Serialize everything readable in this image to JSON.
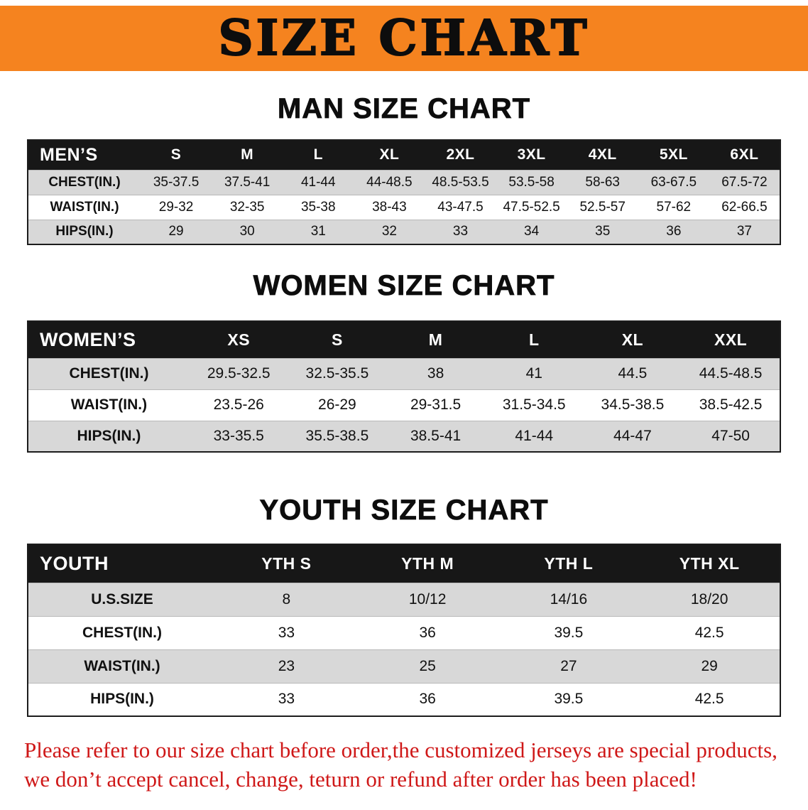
{
  "banner": {
    "title": "SIZE CHART",
    "bg_color": "#f5831f",
    "text_color": "#0d0d0d"
  },
  "sections": [
    {
      "heading": "MAN SIZE CHART",
      "table": {
        "corner_label": "MEN’S",
        "columns": [
          "S",
          "M",
          "L",
          "XL",
          "2XL",
          "3XL",
          "4XL",
          "5XL",
          "6XL"
        ],
        "rows": [
          {
            "label": "CHEST(IN.)",
            "values": [
              "35-37.5",
              "37.5-41",
              "41-44",
              "44-48.5",
              "48.5-53.5",
              "53.5-58",
              "58-63",
              "63-67.5",
              "67.5-72"
            ]
          },
          {
            "label": "WAIST(IN.)",
            "values": [
              "29-32",
              "32-35",
              "35-38",
              "38-43",
              "43-47.5",
              "47.5-52.5",
              "52.5-57",
              "57-62",
              "62-66.5"
            ]
          },
          {
            "label": "HIPS(IN.)",
            "values": [
              "29",
              "30",
              "31",
              "32",
              "33",
              "34",
              "35",
              "36",
              "37"
            ]
          }
        ]
      }
    },
    {
      "heading": "WOMEN SIZE CHART",
      "table": {
        "corner_label": "WOMEN’S",
        "columns": [
          "XS",
          "S",
          "M",
          "L",
          "XL",
          "XXL"
        ],
        "rows": [
          {
            "label": "CHEST(IN.)",
            "values": [
              "29.5-32.5",
              "32.5-35.5",
              "38",
              "41",
              "44.5",
              "44.5-48.5"
            ]
          },
          {
            "label": "WAIST(IN.)",
            "values": [
              "23.5-26",
              "26-29",
              "29-31.5",
              "31.5-34.5",
              "34.5-38.5",
              "38.5-42.5"
            ]
          },
          {
            "label": "HIPS(IN.)",
            "values": [
              "33-35.5",
              "35.5-38.5",
              "38.5-41",
              "41-44",
              "44-47",
              "47-50"
            ]
          }
        ]
      }
    },
    {
      "heading": "YOUTH SIZE CHART",
      "table": {
        "corner_label": "YOUTH",
        "columns": [
          "YTH S",
          "YTH M",
          "YTH L",
          "YTH XL"
        ],
        "rows": [
          {
            "label": "U.S.SIZE",
            "values": [
              "8",
              "10/12",
              "14/16",
              "18/20"
            ]
          },
          {
            "label": "CHEST(IN.)",
            "values": [
              "33",
              "36",
              "39.5",
              "42.5"
            ]
          },
          {
            "label": "WAIST(IN.)",
            "values": [
              "23",
              "25",
              "27",
              "29"
            ]
          },
          {
            "label": "HIPS(IN.)",
            "values": [
              "33",
              "36",
              "39.5",
              "42.5"
            ]
          }
        ]
      }
    }
  ],
  "footer": {
    "lines": [
      "Please refer to our size chart before order,the customized jerseys are special products,",
      "we don’t accept cancel, change, teturn or refund after order has been placed!"
    ],
    "text_color": "#cf1818"
  },
  "colors": {
    "table_header_bg": "#171717",
    "stripe_row_bg": "#d8d8d8",
    "table_border": "#1c1c1c"
  }
}
